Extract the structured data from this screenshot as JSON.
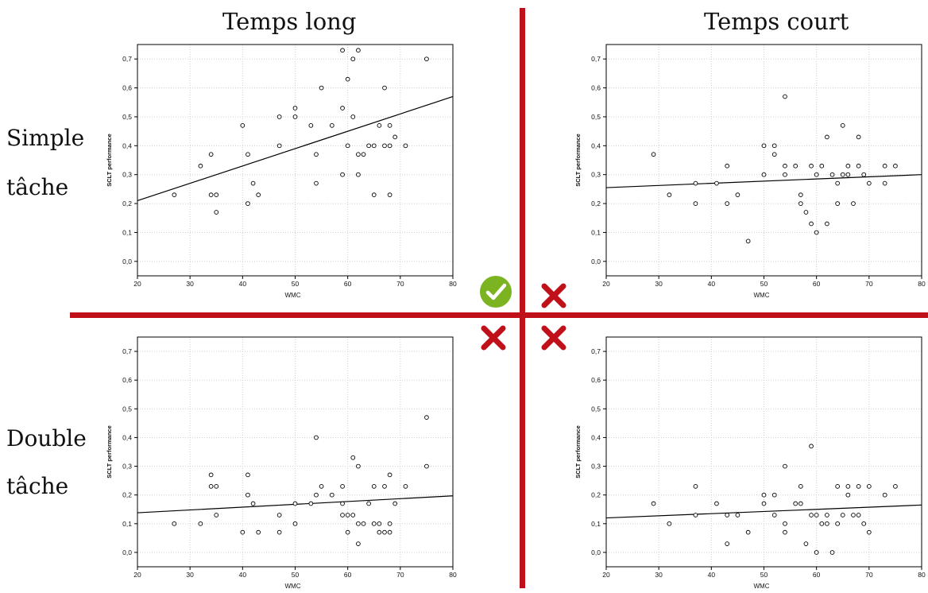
{
  "columns": {
    "left_title": "Temps long",
    "right_title": "Temps court"
  },
  "rows": {
    "top_label_1": "Simple",
    "top_label_2": "tâche",
    "bottom_label_1": "Double",
    "bottom_label_2": "tâche"
  },
  "marks": {
    "top_left": "check-icon",
    "top_right": "cross-icon",
    "bottom_left": "cross-icon",
    "bottom_right": "cross-icon",
    "check_color": "#7bb321",
    "cross_color": "#c0101a"
  },
  "colors": {
    "divider": "#c0101a",
    "grid": "#cfcfcf",
    "frame": "#000000"
  },
  "chart_data": [
    {
      "panel": "long-simple",
      "type": "scatter",
      "xlabel": "WMC",
      "ylabel": "SCLT performance",
      "xlim": [
        20,
        80
      ],
      "ylim": [
        -0.05,
        0.75
      ],
      "xticks": [
        20,
        30,
        40,
        50,
        60,
        70,
        80
      ],
      "yticks": [
        0.0,
        0.1,
        0.2,
        0.3,
        0.4,
        0.5,
        0.6,
        0.7
      ],
      "ytick_labels": [
        "0,0",
        "0,1",
        "0,2",
        "0,3",
        "0,4",
        "0,5",
        "0,6",
        "0,7"
      ],
      "grid": true,
      "trend_line": [
        [
          20,
          0.21
        ],
        [
          80,
          0.57
        ]
      ],
      "points": [
        [
          27,
          0.23
        ],
        [
          32,
          0.33
        ],
        [
          34,
          0.37
        ],
        [
          34,
          0.23
        ],
        [
          35,
          0.23
        ],
        [
          35,
          0.17
        ],
        [
          40,
          0.47
        ],
        [
          41,
          0.37
        ],
        [
          41,
          0.2
        ],
        [
          42,
          0.27
        ],
        [
          43,
          0.23
        ],
        [
          47,
          0.5
        ],
        [
          47,
          0.4
        ],
        [
          50,
          0.53
        ],
        [
          50,
          0.5
        ],
        [
          53,
          0.47
        ],
        [
          54,
          0.37
        ],
        [
          54,
          0.27
        ],
        [
          55,
          0.6
        ],
        [
          57,
          0.47
        ],
        [
          59,
          0.73
        ],
        [
          59,
          0.53
        ],
        [
          59,
          0.3
        ],
        [
          60,
          0.63
        ],
        [
          60,
          0.4
        ],
        [
          61,
          0.7
        ],
        [
          61,
          0.5
        ],
        [
          62,
          0.73
        ],
        [
          62,
          0.37
        ],
        [
          62,
          0.3
        ],
        [
          63,
          0.37
        ],
        [
          64,
          0.4
        ],
        [
          65,
          0.4
        ],
        [
          65,
          0.23
        ],
        [
          66,
          0.47
        ],
        [
          67,
          0.6
        ],
        [
          67,
          0.4
        ],
        [
          68,
          0.47
        ],
        [
          68,
          0.4
        ],
        [
          68,
          0.23
        ],
        [
          69,
          0.43
        ],
        [
          71,
          0.4
        ],
        [
          75,
          0.7
        ]
      ]
    },
    {
      "panel": "court-simple",
      "type": "scatter",
      "xlabel": "WMC",
      "ylabel": "SCLT performance",
      "xlim": [
        20,
        80
      ],
      "ylim": [
        -0.05,
        0.75
      ],
      "xticks": [
        20,
        30,
        40,
        50,
        60,
        70,
        80
      ],
      "yticks": [
        0.0,
        0.1,
        0.2,
        0.3,
        0.4,
        0.5,
        0.6,
        0.7
      ],
      "ytick_labels": [
        "0,0",
        "0,1",
        "0,2",
        "0,3",
        "0,4",
        "0,5",
        "0,6",
        "0,7"
      ],
      "grid": true,
      "trend_line": [
        [
          20,
          0.255
        ],
        [
          80,
          0.3
        ]
      ],
      "points": [
        [
          29,
          0.37
        ],
        [
          32,
          0.23
        ],
        [
          37,
          0.27
        ],
        [
          37,
          0.2
        ],
        [
          41,
          0.27
        ],
        [
          43,
          0.33
        ],
        [
          43,
          0.2
        ],
        [
          45,
          0.23
        ],
        [
          47,
          0.07
        ],
        [
          50,
          0.4
        ],
        [
          50,
          0.3
        ],
        [
          52,
          0.4
        ],
        [
          52,
          0.37
        ],
        [
          54,
          0.57
        ],
        [
          54,
          0.33
        ],
        [
          54,
          0.3
        ],
        [
          56,
          0.33
        ],
        [
          57,
          0.23
        ],
        [
          57,
          0.2
        ],
        [
          58,
          0.17
        ],
        [
          59,
          0.33
        ],
        [
          59,
          0.13
        ],
        [
          60,
          0.3
        ],
        [
          60,
          0.1
        ],
        [
          61,
          0.33
        ],
        [
          62,
          0.43
        ],
        [
          62,
          0.13
        ],
        [
          63,
          0.3
        ],
        [
          64,
          0.27
        ],
        [
          64,
          0.2
        ],
        [
          65,
          0.47
        ],
        [
          65,
          0.3
        ],
        [
          66,
          0.33
        ],
        [
          66,
          0.3
        ],
        [
          67,
          0.2
        ],
        [
          68,
          0.43
        ],
        [
          68,
          0.33
        ],
        [
          69,
          0.3
        ],
        [
          70,
          0.27
        ],
        [
          73,
          0.33
        ],
        [
          73,
          0.27
        ],
        [
          75,
          0.33
        ]
      ]
    },
    {
      "panel": "long-double",
      "type": "scatter",
      "xlabel": "WMC",
      "ylabel": "SCLT performance",
      "xlim": [
        20,
        80
      ],
      "ylim": [
        -0.05,
        0.75
      ],
      "xticks": [
        20,
        30,
        40,
        50,
        60,
        70,
        80
      ],
      "yticks": [
        0.0,
        0.1,
        0.2,
        0.3,
        0.4,
        0.5,
        0.6,
        0.7
      ],
      "ytick_labels": [
        "0,0",
        "0,1",
        "0,2",
        "0,3",
        "0,4",
        "0,5",
        "0,6",
        "0,7"
      ],
      "grid": true,
      "trend_line": [
        [
          20,
          0.138
        ],
        [
          80,
          0.197
        ]
      ],
      "points": [
        [
          27,
          0.1
        ],
        [
          32,
          0.1
        ],
        [
          34,
          0.27
        ],
        [
          34,
          0.23
        ],
        [
          35,
          0.23
        ],
        [
          35,
          0.13
        ],
        [
          40,
          0.07
        ],
        [
          41,
          0.27
        ],
        [
          41,
          0.2
        ],
        [
          42,
          0.17
        ],
        [
          43,
          0.07
        ],
        [
          47,
          0.13
        ],
        [
          47,
          0.07
        ],
        [
          50,
          0.17
        ],
        [
          50,
          0.1
        ],
        [
          53,
          0.17
        ],
        [
          54,
          0.4
        ],
        [
          54,
          0.2
        ],
        [
          55,
          0.23
        ],
        [
          57,
          0.2
        ],
        [
          59,
          0.23
        ],
        [
          59,
          0.17
        ],
        [
          59,
          0.13
        ],
        [
          60,
          0.13
        ],
        [
          60,
          0.07
        ],
        [
          61,
          0.33
        ],
        [
          61,
          0.13
        ],
        [
          62,
          0.3
        ],
        [
          62,
          0.1
        ],
        [
          62,
          0.03
        ],
        [
          63,
          0.1
        ],
        [
          64,
          0.17
        ],
        [
          65,
          0.23
        ],
        [
          65,
          0.1
        ],
        [
          66,
          0.1
        ],
        [
          66,
          0.07
        ],
        [
          67,
          0.23
        ],
        [
          67,
          0.07
        ],
        [
          68,
          0.27
        ],
        [
          68,
          0.1
        ],
        [
          68,
          0.07
        ],
        [
          69,
          0.17
        ],
        [
          71,
          0.23
        ],
        [
          75,
          0.47
        ],
        [
          75,
          0.3
        ]
      ]
    },
    {
      "panel": "court-double",
      "type": "scatter",
      "xlabel": "WMC",
      "ylabel": "SCLT performance",
      "xlim": [
        20,
        80
      ],
      "ylim": [
        -0.05,
        0.75
      ],
      "xticks": [
        20,
        30,
        40,
        50,
        60,
        70,
        80
      ],
      "yticks": [
        0.0,
        0.1,
        0.2,
        0.3,
        0.4,
        0.5,
        0.6,
        0.7
      ],
      "ytick_labels": [
        "0,0",
        "0,1",
        "0,2",
        "0,3",
        "0,4",
        "0,5",
        "0,6",
        "0,7"
      ],
      "grid": true,
      "trend_line": [
        [
          20,
          0.12
        ],
        [
          80,
          0.165
        ]
      ],
      "points": [
        [
          29,
          0.17
        ],
        [
          32,
          0.1
        ],
        [
          37,
          0.23
        ],
        [
          37,
          0.13
        ],
        [
          41,
          0.17
        ],
        [
          43,
          0.13
        ],
        [
          43,
          0.03
        ],
        [
          45,
          0.13
        ],
        [
          47,
          0.07
        ],
        [
          50,
          0.2
        ],
        [
          50,
          0.17
        ],
        [
          52,
          0.2
        ],
        [
          52,
          0.13
        ],
        [
          54,
          0.3
        ],
        [
          54,
          0.1
        ],
        [
          54,
          0.07
        ],
        [
          56,
          0.17
        ],
        [
          57,
          0.23
        ],
        [
          57,
          0.17
        ],
        [
          58,
          0.03
        ],
        [
          59,
          0.37
        ],
        [
          59,
          0.13
        ],
        [
          60,
          0.13
        ],
        [
          60,
          0.0
        ],
        [
          61,
          0.1
        ],
        [
          62,
          0.13
        ],
        [
          62,
          0.1
        ],
        [
          63,
          0.0
        ],
        [
          64,
          0.23
        ],
        [
          64,
          0.1
        ],
        [
          65,
          0.13
        ],
        [
          66,
          0.23
        ],
        [
          66,
          0.2
        ],
        [
          67,
          0.13
        ],
        [
          68,
          0.23
        ],
        [
          68,
          0.13
        ],
        [
          69,
          0.1
        ],
        [
          70,
          0.23
        ],
        [
          70,
          0.07
        ],
        [
          73,
          0.2
        ],
        [
          75,
          0.23
        ]
      ]
    }
  ]
}
